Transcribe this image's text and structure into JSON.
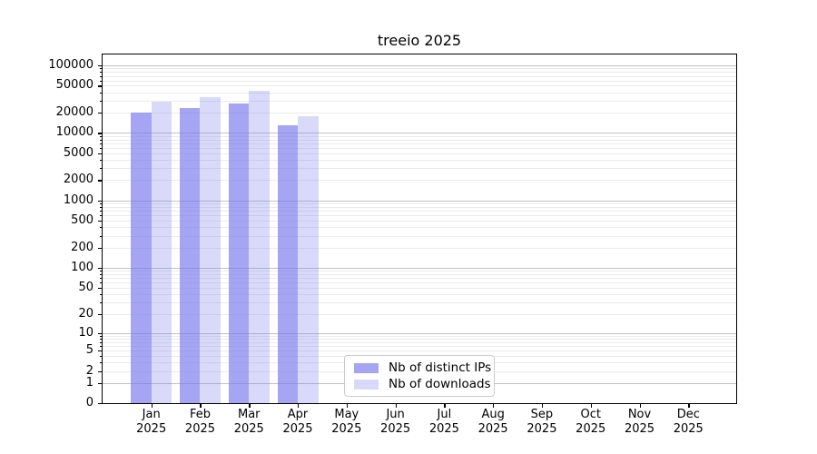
{
  "chart": {
    "title": "treeio 2025"
  },
  "legend": {
    "items": [
      {
        "label": "Nb of distinct IPs",
        "color": "rgba(119,119,238,0.66)"
      },
      {
        "label": "Nb of downloads",
        "color": "rgba(119,119,238,0.28)"
      }
    ]
  },
  "chart_data": {
    "type": "bar",
    "title": "treeio 2025",
    "year": "2025",
    "months": [
      "Jan",
      "Feb",
      "Mar",
      "Apr",
      "May",
      "Jun",
      "Jul",
      "Aug",
      "Sep",
      "Oct",
      "Nov",
      "Dec"
    ],
    "categories": [
      "Jan 2025",
      "Feb 2025",
      "Mar 2025",
      "Apr 2025",
      "May 2025",
      "Jun 2025",
      "Jul 2025",
      "Aug 2025",
      "Sep 2025",
      "Oct 2025",
      "Nov 2025",
      "Dec 2025"
    ],
    "series": [
      {
        "name": "Nb of distinct IPs",
        "color": "rgba(119,119,238,0.66)",
        "values": [
          20000,
          23000,
          27000,
          13000,
          null,
          null,
          null,
          null,
          null,
          null,
          null,
          null
        ]
      },
      {
        "name": "Nb of downloads",
        "color": "rgba(119,119,238,0.28)",
        "values": [
          29000,
          34000,
          42000,
          17500,
          null,
          null,
          null,
          null,
          null,
          null,
          null,
          null
        ]
      }
    ],
    "yscale": "symlog (position proportional to log10(1+v))",
    "ylim": [
      0,
      145000
    ],
    "ytick_labels": [
      100000,
      50000,
      20000,
      10000,
      5000,
      2000,
      1000,
      500,
      200,
      100,
      50,
      20,
      10,
      5,
      2,
      1,
      0
    ],
    "grid": {
      "horizontal": true,
      "major": "powers of 10 (dark gray)",
      "minor": "2-9 per decade (light gray)"
    },
    "legend_position": "lower center"
  }
}
